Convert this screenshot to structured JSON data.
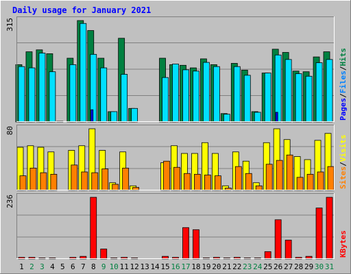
{
  "chart_data": {
    "type": "bar",
    "title": "Daily usage for January 2021",
    "days": [
      "1",
      "2",
      "3",
      "4",
      "5",
      "6",
      "7",
      "8",
      "9",
      "10",
      "11",
      "12",
      "13",
      "14",
      "15",
      "16",
      "17",
      "18",
      "19",
      "20",
      "21",
      "22",
      "23",
      "24",
      "25",
      "26",
      "27",
      "28",
      "29",
      "30",
      "31"
    ],
    "weekend_days": [
      "2",
      "3",
      "9",
      "10",
      "16",
      "17",
      "23",
      "24",
      "30",
      "31"
    ],
    "panels": [
      {
        "name": "hits-files-pages",
        "max_label": "315",
        "ylim": [
          0,
          315
        ],
        "side_labels": [
          "Pages",
          "Files",
          "Hits"
        ],
        "series": [
          {
            "name": "Hits",
            "color": "#008040",
            "values": [
              178,
              218,
              224,
              212,
              2,
              198,
              315,
              284,
              198,
              32,
              260,
              42,
              0,
              0,
              198,
              178,
              176,
              168,
              196,
              178,
              26,
              182,
              161,
              32,
              152,
              226,
              216,
              158,
              156,
              202,
              218
            ]
          },
          {
            "name": "Files",
            "color": "#00e0ff",
            "values": [
              172,
              168,
              214,
              156,
              0,
              178,
              306,
              210,
              168,
              32,
              148,
              42,
              0,
              0,
              138,
              180,
              162,
              158,
              185,
              172,
              24,
              172,
              145,
              30,
              152,
              208,
              194,
              150,
              142,
              184,
              194
            ]
          },
          {
            "name": "Pages",
            "color": "#0000ff",
            "values": [
              0,
              0,
              0,
              0,
              0,
              0,
              0,
              38,
              0,
              0,
              0,
              0,
              0,
              0,
              0,
              0,
              0,
              0,
              0,
              0,
              0,
              0,
              0,
              0,
              0,
              30,
              0,
              0,
              0,
              0,
              0
            ]
          }
        ]
      },
      {
        "name": "visits-sites",
        "max_label": "80",
        "ylim": [
          0,
          80
        ],
        "side_labels": [
          "Sites",
          "Visits"
        ],
        "series": [
          {
            "name": "Visits",
            "color": "#ffff00",
            "values": [
              56,
              58,
              56,
              50,
              0,
              52,
              58,
              80,
              52,
              10,
              50,
              6,
              0,
              0,
              36,
              58,
              48,
              48,
              62,
              48,
              6,
              50,
              38,
              10,
              62,
              80,
              66,
              44,
              40,
              65,
              74
            ]
          },
          {
            "name": "Sites",
            "color": "#ff8000",
            "values": [
              19,
              29,
              23,
              21,
              0,
              33,
              24,
              23,
              28,
              8,
              29,
              4,
              0,
              0,
              38,
              30,
              22,
              21,
              20,
              19,
              3,
              31,
              22,
              6,
              34,
              39,
              46,
              17,
              21,
              24,
              31
            ]
          }
        ]
      },
      {
        "name": "kbytes",
        "max_label": "236",
        "ylim": [
          0,
          236
        ],
        "side_labels": [
          "KBytes"
        ],
        "series": [
          {
            "name": "KBytes",
            "color": "#ff0000",
            "values": [
              6,
              6,
              4,
              4,
              0,
              6,
              10,
              236,
              38,
              4,
              6,
              4,
              0,
              0,
              10,
              6,
              120,
              112,
              4,
              6,
              4,
              6,
              4,
              4,
              28,
              150,
              72,
              6,
              10,
              195,
              236
            ]
          }
        ]
      }
    ]
  }
}
